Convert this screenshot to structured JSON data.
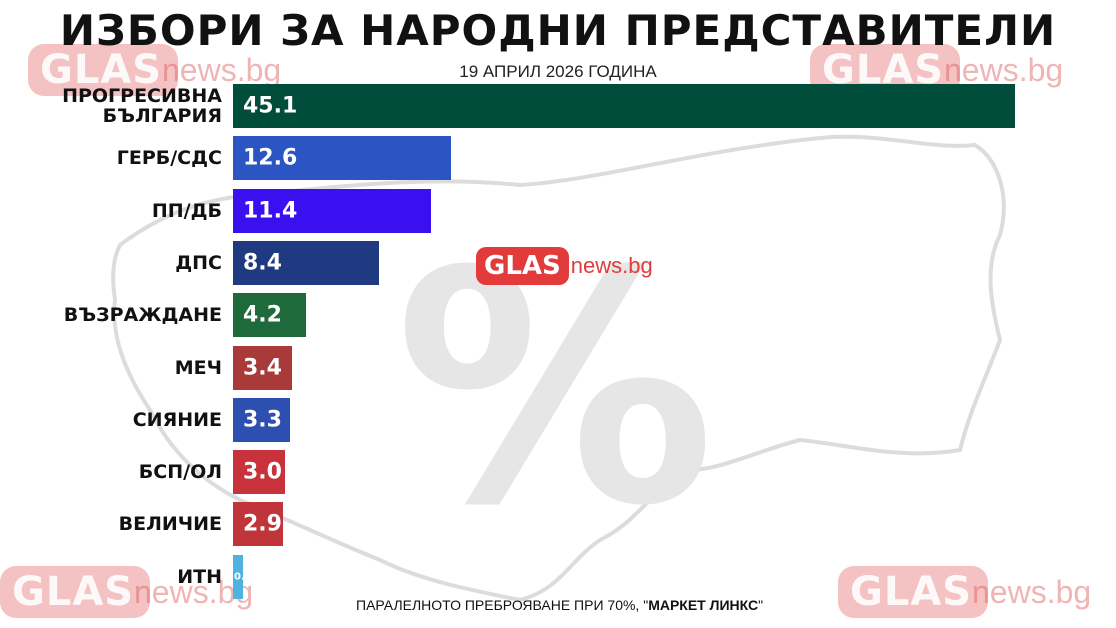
{
  "title": "ИЗБОРИ ЗА НАРОДНИ ПРЕДСТАВИТЕЛИ",
  "subtitle": "19 АПРИЛ 2026 ГОДИНА",
  "watermark": {
    "glas": "GLAS",
    "news": "news.bg"
  },
  "background_symbol": "%",
  "footnote": {
    "text": "ПАРАЛЕЛНОТО ПРЕБРОЯВАНЕ ПРИ 70%, \"",
    "source": "МАРКЕТ ЛИНКС",
    "end": "\""
  },
  "chart_data": {
    "type": "bar",
    "orientation": "horizontal",
    "categories": [
      "ПРОГРЕСИВНА БЪЛГАРИЯ",
      "ГЕРБ/СДС",
      "ПП/ДБ",
      "ДПС",
      "ВЪЗРАЖДАНЕ",
      "МЕЧ",
      "СИЯНИЕ",
      "БСП/ОЛ",
      "ВЕЛИЧИЕ",
      "ИТН"
    ],
    "values": [
      45.1,
      12.6,
      11.4,
      8.4,
      4.2,
      3.4,
      3.3,
      3.0,
      2.9,
      0.6
    ],
    "value_labels": [
      "45.1",
      "12.6",
      "11.4",
      "8.4",
      "4.2",
      "3.4",
      "3.3",
      "3.0",
      "2.9",
      "0.6"
    ],
    "colors": [
      "#004d3b",
      "#2a55c2",
      "#3b10f0",
      "#1f3a80",
      "#1f6a3a",
      "#a83a3a",
      "#2d4fb0",
      "#c8323a",
      "#c0353a",
      "#4fb3e0"
    ],
    "xlim": [
      0,
      45.1
    ],
    "grid": false,
    "legend": "none"
  }
}
